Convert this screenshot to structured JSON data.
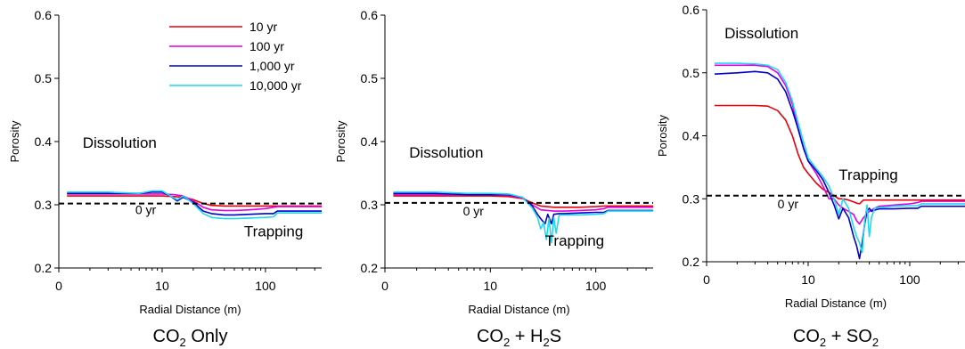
{
  "chart_data": [
    {
      "type": "line",
      "title": "",
      "xlabel": "Radial Distance (m)",
      "ylabel": "Porosity",
      "xscale": "log",
      "xlim": [
        1,
        350
      ],
      "ylim": [
        0.2,
        0.6
      ],
      "xticks": [
        {
          "v": 1,
          "label": "0"
        },
        {
          "v": 10,
          "label": "10"
        },
        {
          "v": 100,
          "label": "100"
        }
      ],
      "yticks": [
        "0.2",
        "0.3",
        "0.4",
        "0.5",
        "0.6"
      ],
      "caption": {
        "pre": "CO",
        "s1": "2",
        "post": " Only"
      },
      "annotations": [
        {
          "text": "Dissolution",
          "x": 1.7,
          "y": 0.39
        },
        {
          "text": "0 yr",
          "x": 5.5,
          "y": 0.285
        },
        {
          "text": "Trapping",
          "x": 62,
          "y": 0.25
        }
      ],
      "initial": {
        "name": "0 yr",
        "value": 0.302,
        "style": "dashed"
      },
      "legend": {
        "position": "top-right",
        "entries": [
          "10 yr",
          "100 yr",
          "1,000 yr",
          "10,000 yr"
        ]
      },
      "series": [
        {
          "name": "10 yr",
          "color": "#e8000b",
          "x": [
            1.2,
            3,
            6,
            10,
            13,
            16,
            20,
            25,
            30,
            40,
            50,
            70,
            100,
            120,
            130,
            350
          ],
          "y": [
            0.314,
            0.314,
            0.314,
            0.314,
            0.313,
            0.312,
            0.308,
            0.302,
            0.299,
            0.298,
            0.298,
            0.298,
            0.298,
            0.298,
            0.298,
            0.298
          ]
        },
        {
          "name": "100 yr",
          "color": "#e000e0",
          "x": [
            1.2,
            3,
            6,
            10,
            13,
            16,
            20,
            25,
            30,
            40,
            50,
            70,
            100,
            120,
            130,
            350
          ],
          "y": [
            0.317,
            0.317,
            0.317,
            0.317,
            0.316,
            0.314,
            0.306,
            0.296,
            0.292,
            0.291,
            0.291,
            0.292,
            0.294,
            0.296,
            0.297,
            0.297
          ]
        },
        {
          "name": "1,000 yr",
          "color": "#0000c8",
          "x": [
            1.2,
            3,
            6,
            8,
            10,
            12,
            14,
            16,
            20,
            25,
            30,
            40,
            50,
            70,
            100,
            120,
            130,
            350
          ],
          "y": [
            0.318,
            0.318,
            0.318,
            0.32,
            0.32,
            0.314,
            0.306,
            0.312,
            0.304,
            0.29,
            0.286,
            0.284,
            0.284,
            0.285,
            0.286,
            0.286,
            0.29,
            0.29
          ]
        },
        {
          "name": "10,000 yr",
          "color": "#20d8f0",
          "x": [
            1.2,
            3,
            6,
            8,
            10,
            12,
            14,
            16,
            20,
            25,
            30,
            40,
            50,
            70,
            100,
            120,
            130,
            350
          ],
          "y": [
            0.32,
            0.32,
            0.318,
            0.322,
            0.322,
            0.314,
            0.308,
            0.314,
            0.302,
            0.286,
            0.28,
            0.278,
            0.278,
            0.279,
            0.28,
            0.281,
            0.287,
            0.287
          ]
        }
      ]
    },
    {
      "type": "line",
      "title": "",
      "xlabel": "Radial Distance (m)",
      "ylabel": "Porosity",
      "xscale": "log",
      "xlim": [
        1,
        350
      ],
      "ylim": [
        0.2,
        0.6
      ],
      "xticks": [
        {
          "v": 1,
          "label": "0"
        },
        {
          "v": 10,
          "label": "10"
        },
        {
          "v": 100,
          "label": "100"
        }
      ],
      "yticks": [
        "0.2",
        "0.3",
        "0.4",
        "0.5",
        "0.6"
      ],
      "caption": {
        "pre": "CO",
        "s1": "2",
        "mid": " + H",
        "s2": "2",
        "post": "S"
      },
      "annotations": [
        {
          "text": "Dissolution",
          "x": 1.7,
          "y": 0.375
        },
        {
          "text": "0 yr",
          "x": 5.5,
          "y": 0.283
        },
        {
          "text": "Trapping",
          "x": 33,
          "y": 0.235
        }
      ],
      "initial": {
        "name": "0 yr",
        "value": 0.303,
        "style": "dashed"
      },
      "series": [
        {
          "name": "10 yr",
          "color": "#e8000b",
          "x": [
            1.2,
            3,
            6,
            10,
            15,
            20,
            25,
            30,
            40,
            50,
            70,
            100,
            120,
            130,
            350
          ],
          "y": [
            0.314,
            0.314,
            0.314,
            0.314,
            0.313,
            0.31,
            0.303,
            0.298,
            0.296,
            0.296,
            0.296,
            0.297,
            0.298,
            0.298,
            0.298
          ]
        },
        {
          "name": "100 yr",
          "color": "#e000e0",
          "x": [
            1.2,
            3,
            6,
            10,
            15,
            20,
            25,
            30,
            40,
            50,
            70,
            100,
            120,
            130,
            350
          ],
          "y": [
            0.316,
            0.316,
            0.316,
            0.316,
            0.315,
            0.311,
            0.3,
            0.292,
            0.29,
            0.29,
            0.291,
            0.292,
            0.294,
            0.296,
            0.296
          ]
        },
        {
          "name": "1,000 yr",
          "color": "#0000c8",
          "x": [
            1.2,
            3,
            6,
            10,
            15,
            20,
            25,
            28,
            30,
            33,
            35,
            38,
            40,
            45,
            50,
            70,
            100,
            120,
            130,
            350
          ],
          "y": [
            0.318,
            0.318,
            0.316,
            0.316,
            0.316,
            0.312,
            0.298,
            0.285,
            0.278,
            0.27,
            0.285,
            0.27,
            0.285,
            0.286,
            0.286,
            0.287,
            0.288,
            0.288,
            0.291,
            0.291
          ]
        },
        {
          "name": "10,000 yr",
          "color": "#20d8f0",
          "x": [
            1.2,
            3,
            6,
            10,
            15,
            20,
            25,
            28,
            30,
            32,
            34,
            36,
            38,
            40,
            42,
            45,
            50,
            70,
            100,
            120,
            130,
            350
          ],
          "y": [
            0.32,
            0.32,
            0.318,
            0.318,
            0.317,
            0.312,
            0.295,
            0.28,
            0.262,
            0.272,
            0.245,
            0.278,
            0.24,
            0.28,
            0.255,
            0.284,
            0.284,
            0.284,
            0.285,
            0.286,
            0.29,
            0.29
          ]
        }
      ]
    },
    {
      "type": "line",
      "title": "",
      "xlabel": "Radial Distance (m)",
      "ylabel": "Porosity",
      "xscale": "log",
      "xlim": [
        1,
        350
      ],
      "ylim": [
        0.2,
        0.6
      ],
      "xticks": [
        {
          "v": 1,
          "label": "0"
        },
        {
          "v": 10,
          "label": "10"
        },
        {
          "v": 100,
          "label": "100"
        }
      ],
      "yticks": [
        "0.2",
        "0.3",
        "0.4",
        "0.5",
        "0.6"
      ],
      "caption": {
        "pre": "CO",
        "s1": "2",
        "mid": " + SO",
        "s2": "2",
        "post": ""
      },
      "annotations": [
        {
          "text": "Dissolution",
          "x": 1.5,
          "y": 0.555
        },
        {
          "text": "0 yr",
          "x": 5,
          "y": 0.285
        },
        {
          "text": "Trapping",
          "x": 20,
          "y": 0.33
        }
      ],
      "initial": {
        "name": "0 yr",
        "value": 0.305,
        "style": "dashed"
      },
      "series": [
        {
          "name": "10 yr",
          "color": "#e8000b",
          "x": [
            1.2,
            2,
            3,
            4,
            5,
            6,
            7,
            8,
            9,
            10,
            12,
            14,
            16,
            18,
            20,
            22,
            25,
            28,
            30,
            32,
            35,
            40,
            50,
            70,
            100,
            120,
            130,
            350
          ],
          "y": [
            0.448,
            0.448,
            0.448,
            0.447,
            0.44,
            0.425,
            0.4,
            0.37,
            0.35,
            0.34,
            0.325,
            0.315,
            0.31,
            0.305,
            0.3,
            0.3,
            0.298,
            0.295,
            0.293,
            0.292,
            0.298,
            0.298,
            0.298,
            0.298,
            0.298,
            0.298,
            0.298,
            0.298
          ]
        },
        {
          "name": "100 yr",
          "color": "#e000e0",
          "x": [
            1.2,
            2,
            3,
            4,
            5,
            6,
            7,
            8,
            9,
            10,
            12,
            14,
            16,
            18,
            20,
            22,
            25,
            28,
            30,
            32,
            35,
            40,
            45,
            50,
            70,
            100,
            120,
            130,
            350
          ],
          "y": [
            0.512,
            0.512,
            0.512,
            0.51,
            0.5,
            0.48,
            0.45,
            0.41,
            0.38,
            0.36,
            0.34,
            0.32,
            0.3,
            0.3,
            0.29,
            0.285,
            0.28,
            0.275,
            0.265,
            0.26,
            0.27,
            0.28,
            0.285,
            0.288,
            0.29,
            0.292,
            0.294,
            0.296,
            0.296
          ]
        },
        {
          "name": "1,000 yr",
          "color": "#0000c8",
          "x": [
            1.2,
            2,
            3,
            4,
            5,
            6,
            7,
            8,
            9,
            10,
            12,
            14,
            16,
            18,
            20,
            22,
            25,
            28,
            30,
            32,
            34,
            36,
            38,
            40,
            42,
            45,
            50,
            70,
            100,
            120,
            130,
            350
          ],
          "y": [
            0.498,
            0.5,
            0.502,
            0.5,
            0.49,
            0.47,
            0.44,
            0.41,
            0.38,
            0.36,
            0.345,
            0.33,
            0.31,
            0.29,
            0.268,
            0.285,
            0.27,
            0.24,
            0.225,
            0.205,
            0.23,
            0.26,
            0.28,
            0.285,
            0.28,
            0.282,
            0.284,
            0.284,
            0.285,
            0.285,
            0.288,
            0.288
          ]
        },
        {
          "name": "10,000 yr",
          "color": "#20d8f0",
          "x": [
            1.2,
            2,
            3,
            4,
            5,
            6,
            7,
            8,
            9,
            10,
            12,
            14,
            16,
            18,
            20,
            22,
            25,
            28,
            30,
            32,
            34,
            36,
            38,
            40,
            42,
            45,
            50,
            70,
            100,
            120,
            130,
            350
          ],
          "y": [
            0.515,
            0.515,
            0.514,
            0.512,
            0.505,
            0.485,
            0.455,
            0.42,
            0.39,
            0.365,
            0.348,
            0.335,
            0.32,
            0.3,
            0.275,
            0.3,
            0.285,
            0.255,
            0.24,
            0.23,
            0.215,
            0.265,
            0.29,
            0.24,
            0.27,
            0.285,
            0.286,
            0.288,
            0.289,
            0.289,
            0.292,
            0.292
          ]
        }
      ]
    }
  ]
}
